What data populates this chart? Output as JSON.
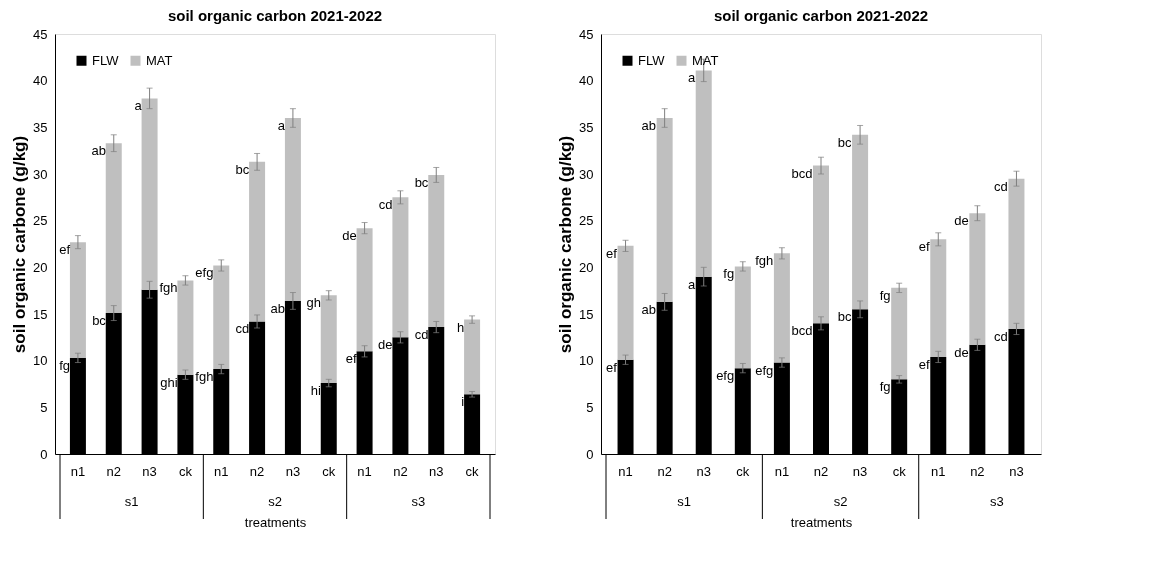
{
  "chart_data": [
    {
      "type": "bar",
      "stacked": true,
      "title": "soil organic carbon 2021-2022",
      "xlabel": "treatments",
      "ylabel": "soil organic carbone (g/kg)",
      "categories": [
        "n1",
        "n2",
        "n3",
        "ck",
        "n1",
        "n2",
        "n3",
        "ck",
        "n1",
        "n2",
        "n3",
        "ck"
      ],
      "annotations": [
        "s1",
        "s2",
        "s3"
      ],
      "series": [
        {
          "name": "FLW",
          "color": "#000000",
          "values": [
            10.3,
            15.1,
            17.6,
            8.5,
            9.1,
            14.2,
            16.4,
            7.6,
            11.0,
            12.5,
            13.6,
            6.4
          ],
          "errors": [
            0.5,
            0.8,
            0.9,
            0.5,
            0.5,
            0.7,
            0.9,
            0.4,
            0.6,
            0.6,
            0.6,
            0.3
          ],
          "value_labels": [
            "fg",
            "bc",
            null,
            "ghi",
            "fgh",
            "cd",
            "ab",
            "hi",
            "ef",
            "de",
            "cd",
            "i"
          ]
        },
        {
          "name": "MAT",
          "color": "#bfbfbf",
          "values": [
            12.4,
            18.2,
            20.5,
            10.1,
            11.1,
            17.1,
            19.6,
            9.4,
            13.2,
            15.0,
            16.3,
            8.0
          ],
          "errors": [
            0.7,
            0.9,
            1.1,
            0.5,
            0.6,
            0.9,
            1.0,
            0.5,
            0.6,
            0.7,
            0.8,
            0.4
          ],
          "value_labels": [
            "ef",
            "ab",
            "a",
            "fgh",
            "efg",
            "bc",
            "a",
            "gh",
            "de",
            "cd",
            "bc",
            "h"
          ]
        }
      ],
      "ylim": [
        0,
        45
      ],
      "yticks": [
        0,
        5,
        10,
        15,
        20,
        25,
        30,
        35,
        40,
        45
      ],
      "grid": false,
      "legend": "top left"
    },
    {
      "type": "bar",
      "stacked": true,
      "title": "soil organic carbon 2021-2022",
      "xlabel": "treatments",
      "ylabel": "soil organic carbone (g/kg)",
      "categories": [
        "n1",
        "n2",
        "n3",
        "ck",
        "n1",
        "n2",
        "n3",
        "ck",
        "n1",
        "n2",
        "n3"
      ],
      "annotations": [
        "s1",
        "s2",
        "s3"
      ],
      "series": [
        {
          "name": "FLW",
          "color": "#000000",
          "values": [
            10.1,
            16.3,
            19.0,
            9.2,
            9.8,
            14.0,
            15.5,
            8.0,
            10.4,
            11.7,
            13.4
          ],
          "errors": [
            0.5,
            0.9,
            1.0,
            0.5,
            0.5,
            0.7,
            0.9,
            0.4,
            0.6,
            0.6,
            0.6
          ],
          "value_labels": [
            "ef",
            "ab",
            "a",
            "efg",
            "efg",
            "bcd",
            "bc",
            "fg",
            "ef",
            "de",
            "cd"
          ]
        },
        {
          "name": "MAT",
          "color": "#bfbfbf",
          "values": [
            12.2,
            19.7,
            22.1,
            10.9,
            11.7,
            16.9,
            18.7,
            9.8,
            12.6,
            14.1,
            16.1
          ],
          "errors": [
            0.6,
            1.0,
            1.2,
            0.5,
            0.6,
            0.9,
            1.0,
            0.5,
            0.7,
            0.8,
            0.8
          ],
          "value_labels": [
            "ef",
            "ab",
            "a",
            "fg",
            "fgh",
            "bcd",
            "bc",
            "fg",
            "ef",
            "de",
            "cd"
          ]
        }
      ],
      "ylim": [
        0,
        45
      ],
      "yticks": [
        0,
        5,
        10,
        15,
        20,
        25,
        30,
        35,
        40,
        45
      ],
      "grid": false,
      "legend": "top left"
    }
  ]
}
